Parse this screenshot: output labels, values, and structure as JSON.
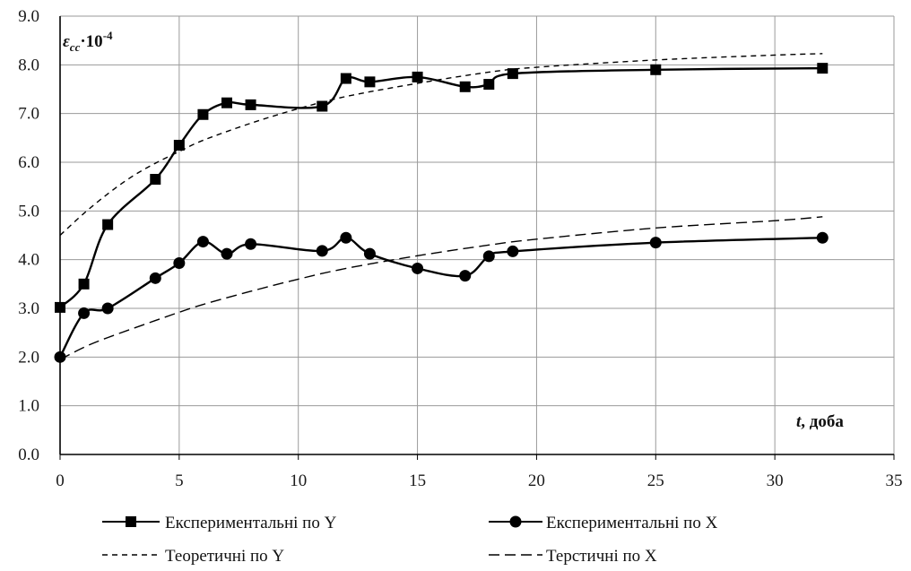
{
  "chart_data": {
    "type": "line",
    "ylabel": "ε",
    "ylabel_sub": "cc",
    "ylabel_suffix": "·10",
    "ylabel_exp": "-4",
    "xlabel_var": "t",
    "xlabel_unit": ", доба",
    "xlim": [
      0,
      35
    ],
    "ylim": [
      0,
      9
    ],
    "x_ticks": [
      "0",
      "5",
      "10",
      "15",
      "20",
      "25",
      "30",
      "35"
    ],
    "y_ticks": [
      "0.0",
      "1.0",
      "2.0",
      "3.0",
      "4.0",
      "5.0",
      "6.0",
      "7.0",
      "8.0",
      "9.0"
    ],
    "grid": true,
    "legend_position": "bottom",
    "series": [
      {
        "name": "Експериментальні  по Y",
        "style": "solid-square",
        "color": "#000000",
        "x": [
          0,
          1,
          2,
          4,
          5,
          6,
          7,
          8,
          11,
          12,
          13,
          15,
          17,
          18,
          19,
          25,
          32
        ],
        "y": [
          3.02,
          3.5,
          4.72,
          5.65,
          6.35,
          6.98,
          7.22,
          7.18,
          7.15,
          7.72,
          7.65,
          7.75,
          7.55,
          7.6,
          7.82,
          7.9,
          7.93
        ]
      },
      {
        "name": "Експериментальні  по X",
        "style": "solid-circle",
        "color": "#000000",
        "x": [
          0,
          1,
          2,
          4,
          5,
          6,
          7,
          8,
          11,
          12,
          13,
          15,
          17,
          18,
          19,
          25,
          32
        ],
        "y": [
          2.0,
          2.9,
          3.0,
          3.62,
          3.93,
          4.37,
          4.12,
          4.32,
          4.18,
          4.45,
          4.12,
          3.82,
          3.67,
          4.07,
          4.17,
          4.35,
          4.45
        ]
      },
      {
        "name": "Теоретичні по Y",
        "style": "short-dash",
        "color": "#000000",
        "x": [
          0,
          1,
          2,
          3,
          4,
          5,
          6,
          8,
          10,
          12,
          15,
          18,
          20,
          25,
          30,
          32
        ],
        "y": [
          4.5,
          4.95,
          5.35,
          5.7,
          5.98,
          6.22,
          6.45,
          6.8,
          7.1,
          7.35,
          7.62,
          7.85,
          7.95,
          8.1,
          8.2,
          8.23
        ]
      },
      {
        "name": "Терстичні по X",
        "style": "long-dash",
        "color": "#000000",
        "x": [
          0,
          1,
          2,
          4,
          5,
          6,
          8,
          10,
          12,
          15,
          18,
          20,
          25,
          30,
          32
        ],
        "y": [
          1.95,
          2.2,
          2.4,
          2.75,
          2.92,
          3.08,
          3.35,
          3.6,
          3.82,
          4.08,
          4.3,
          4.42,
          4.65,
          4.8,
          4.88
        ]
      }
    ]
  }
}
